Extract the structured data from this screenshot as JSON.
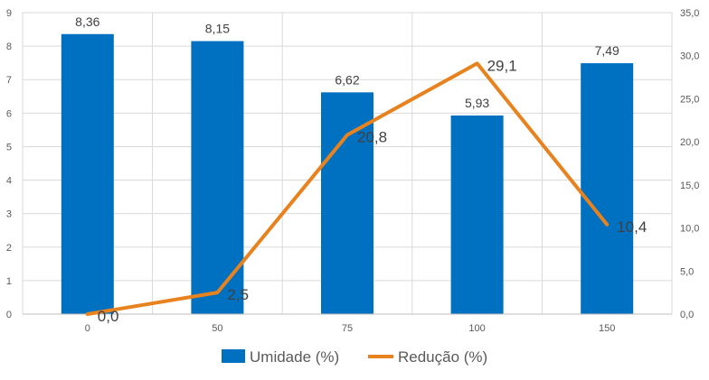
{
  "chart_data": {
    "type": "bar+line",
    "categories": [
      "0",
      "50",
      "75",
      "100",
      "150"
    ],
    "series": [
      {
        "name": "Umidade (%)",
        "type": "bar",
        "axis": "left",
        "values": [
          8.36,
          8.15,
          6.62,
          5.93,
          7.49
        ],
        "labels": [
          "8,36",
          "8,15",
          "6,62",
          "5,93",
          "7,49"
        ],
        "color": "#0070C0"
      },
      {
        "name": "Redução (%)",
        "type": "line",
        "axis": "right",
        "values": [
          0.0,
          2.5,
          20.8,
          29.1,
          10.4
        ],
        "labels": [
          "0,0",
          "2,5",
          "20,8",
          "29,1",
          "10,4"
        ],
        "color": "#E8821E"
      }
    ],
    "y_left": {
      "min": 0,
      "max": 9,
      "ticks": [
        "0",
        "1",
        "2",
        "3",
        "4",
        "5",
        "6",
        "7",
        "8",
        "9"
      ]
    },
    "y_right": {
      "min": 0,
      "max": 35,
      "ticks": [
        "0,0",
        "5,0",
        "10,0",
        "15,0",
        "20,0",
        "25,0",
        "30,0",
        "35,0"
      ]
    },
    "legend": {
      "position": "bottom",
      "items": [
        "Umidade (%)",
        "Redução (%)"
      ]
    },
    "grid": true
  },
  "colors": {
    "gridline": "#D9D9D9",
    "axis": "#BFBFBF"
  }
}
